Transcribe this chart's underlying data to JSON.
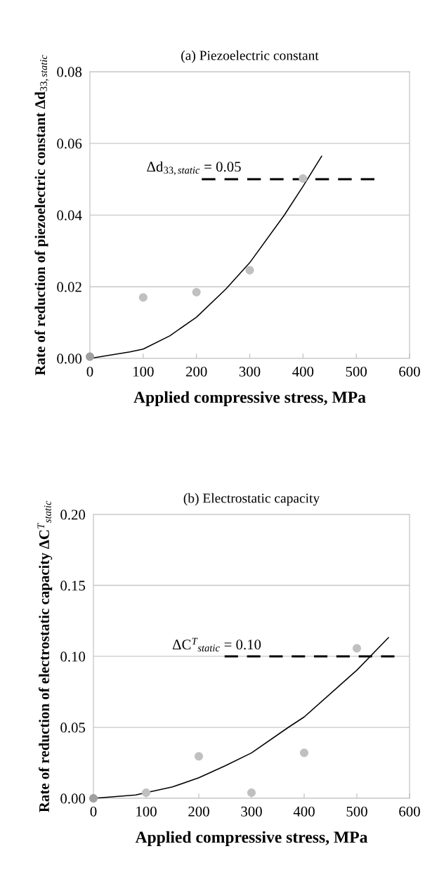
{
  "chart_data": [
    {
      "type": "scatter",
      "title": "(a) Piezoelectric constant",
      "xlabel": "Applied compressive stress, MPa",
      "ylabel": "Rate of reduction of piezoelectric constant Δd$_{33,static}$",
      "xlim": [
        0,
        600
      ],
      "xticks": [
        0,
        100,
        200,
        300,
        400,
        500,
        600
      ],
      "ylim": [
        0,
        0.08
      ],
      "yticks": [
        {
          "value": 0,
          "label": "0.00"
        },
        {
          "value": 0.02,
          "label": "0.02"
        },
        {
          "value": 0.04,
          "label": "0.04"
        },
        {
          "value": 0.06,
          "label": "0.06"
        },
        {
          "value": 0.08,
          "label": "0.08"
        }
      ],
      "grid": "y",
      "series": [
        {
          "marker": "circle",
          "x": [
            0,
            100,
            200,
            300,
            400
          ],
          "values": [
            0.0005,
            0.017,
            0.0185,
            0.0246,
            0.0502
          ],
          "colors": [
            "#a0a0a0",
            "#c0c0c0",
            "#c0c0c0",
            "#c0c0c0",
            "#c0c0c0"
          ]
        },
        {
          "type": "line",
          "color": "#000000",
          "x": [
            0,
            75,
            100,
            150,
            200,
            255,
            300,
            365,
            400,
            435
          ],
          "values": [
            0,
            0.0018,
            0.0026,
            0.0063,
            0.0115,
            0.0193,
            0.0267,
            0.04,
            0.048,
            0.0564
          ]
        },
        {
          "type": "line",
          "name": "Δd$_{33,static}$ = 0.05",
          "color": "#000000",
          "line_style": "dashed",
          "x": [
            210,
            535
          ],
          "values": [
            0.05,
            0.05
          ]
        }
      ]
    },
    {
      "type": "scatter",
      "title": "(b) Electrostatic capacity",
      "xlabel": "Applied compressive stress, MPa",
      "ylabel": "Rate of reduction of electrostatic capacity ΔC$^{T}$$_{static}$",
      "xlim": [
        0,
        600
      ],
      "xticks": [
        0,
        100,
        200,
        300,
        400,
        500,
        600
      ],
      "ylim": [
        0,
        0.2
      ],
      "yticks": [
        {
          "value": 0,
          "label": "0.00"
        },
        {
          "value": 0.05,
          "label": "0.05"
        },
        {
          "value": 0.1,
          "label": "0.10"
        },
        {
          "value": 0.15,
          "label": "0.15"
        },
        {
          "value": 0.2,
          "label": "0.20"
        }
      ],
      "grid": "y",
      "series": [
        {
          "marker": "circle",
          "x": [
            0,
            100,
            200,
            300,
            400,
            500
          ],
          "values": [
            0,
            0.004,
            0.0296,
            0.004,
            0.032,
            0.1057
          ],
          "colors": [
            "#a0a0a0",
            "#c0c0c0",
            "#c0c0c0",
            "#c0c0c0",
            "#c0c0c0",
            "#c0c0c0"
          ]
        },
        {
          "type": "line",
          "color": "#000000",
          "x": [
            0,
            80,
            150,
            200,
            250,
            300,
            370,
            400,
            500,
            560
          ],
          "values": [
            0,
            0.0023,
            0.008,
            0.0145,
            0.0229,
            0.032,
            0.05,
            0.0573,
            0.0903,
            0.1132
          ]
        },
        {
          "type": "line",
          "name": "ΔC$^{T}$$_{static}$ = 0.10",
          "color": "#000000",
          "line_style": "dashed",
          "x": [
            249,
            572
          ],
          "values": [
            0.1,
            0.1
          ]
        }
      ]
    }
  ]
}
